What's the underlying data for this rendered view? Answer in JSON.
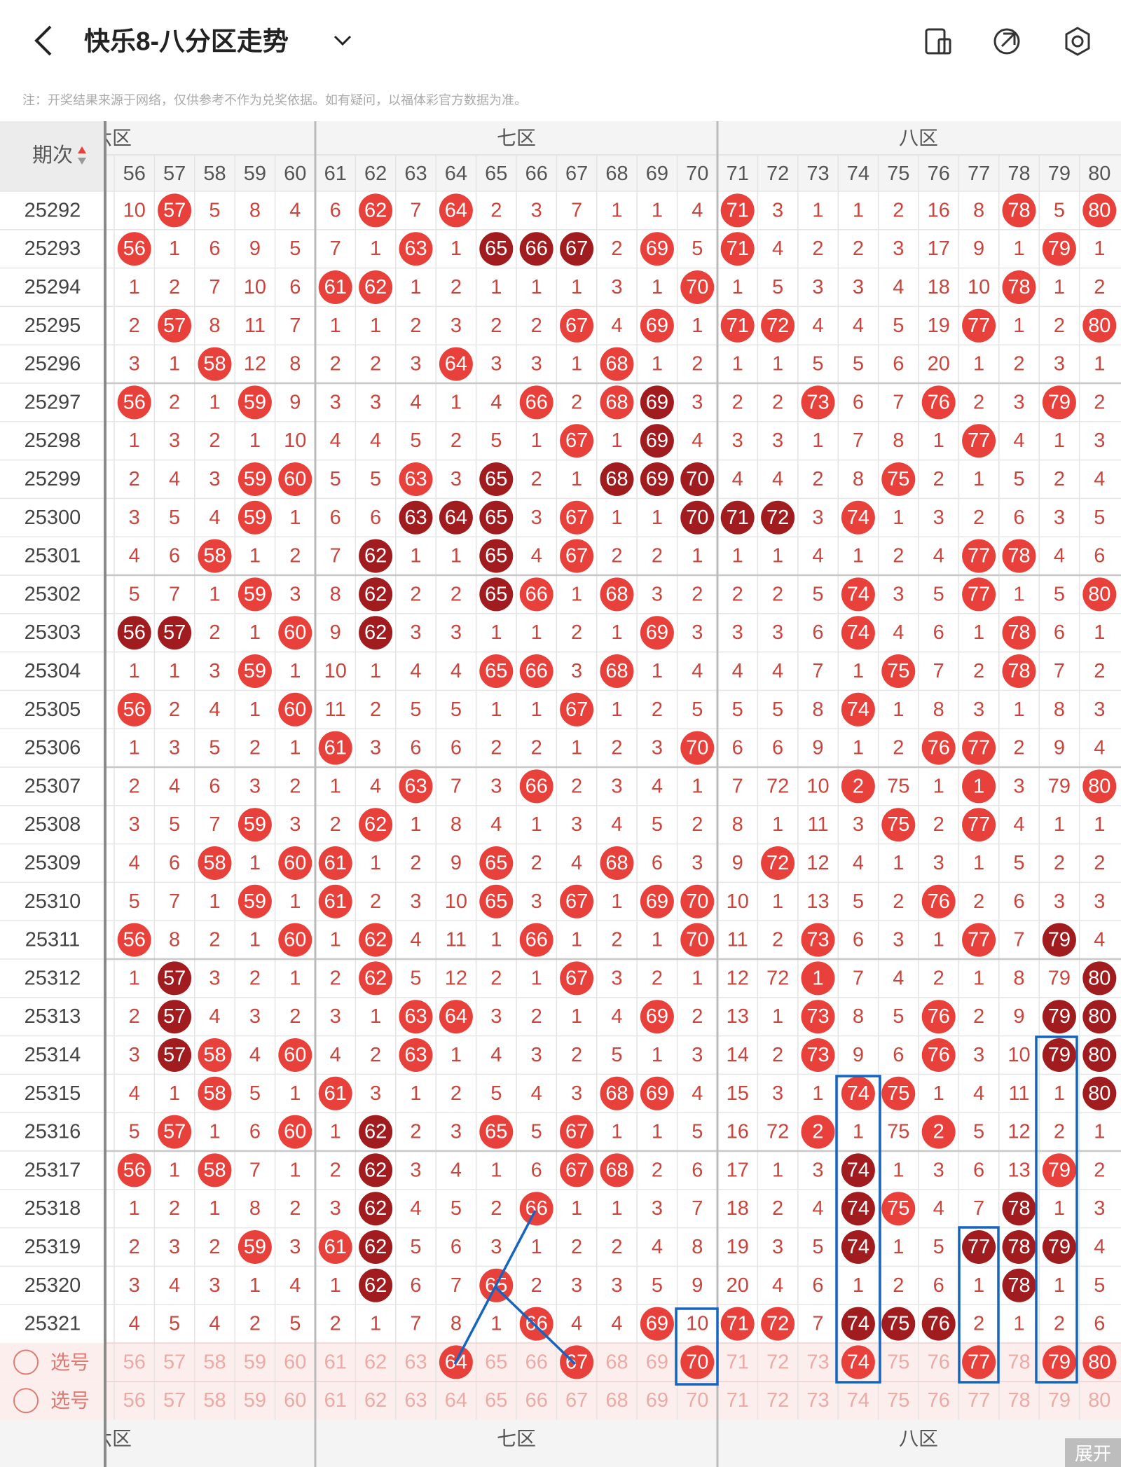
{
  "header": {
    "title": "快乐8-八分区走势",
    "note": "注：开奖结果来源于网络，仅供参考不作为兑奖依据。如有疑问，以福体彩官方数据为准。"
  },
  "table": {
    "issue_header": "期次",
    "zones": [
      {
        "label": "六区"
      },
      {
        "label": "七区"
      },
      {
        "label": "八区"
      }
    ],
    "columns": [
      56,
      57,
      58,
      59,
      60,
      61,
      62,
      63,
      64,
      65,
      66,
      67,
      68,
      69,
      70,
      71,
      72,
      73,
      74,
      75,
      76,
      77,
      78,
      79,
      80
    ],
    "ball_colors": {
      "r": "#e8403a",
      "d": "#a01c1e"
    },
    "rows": [
      {
        "issue": "25292",
        "cells": [
          10,
          57,
          5,
          8,
          4,
          6,
          62,
          7,
          64,
          2,
          3,
          7,
          1,
          1,
          4,
          71,
          3,
          1,
          1,
          2,
          16,
          8,
          78,
          5,
          80
        ],
        "balls": ".r....r.r......r......r.r"
      },
      {
        "issue": "25293",
        "cells": [
          56,
          1,
          6,
          9,
          5,
          7,
          1,
          63,
          1,
          65,
          66,
          67,
          2,
          69,
          5,
          71,
          4,
          2,
          2,
          3,
          17,
          9,
          1,
          79,
          1
        ],
        "balls": "r......r.ddd.r.r.......r."
      },
      {
        "issue": "25294",
        "cells": [
          1,
          2,
          7,
          10,
          6,
          61,
          62,
          1,
          2,
          1,
          1,
          1,
          3,
          1,
          70,
          1,
          5,
          3,
          3,
          4,
          18,
          10,
          78,
          1,
          2
        ],
        "balls": ".....rr.......r.......r.."
      },
      {
        "issue": "25295",
        "cells": [
          2,
          57,
          8,
          11,
          7,
          1,
          1,
          2,
          3,
          2,
          2,
          67,
          4,
          69,
          1,
          71,
          72,
          4,
          4,
          5,
          19,
          77,
          1,
          2,
          80
        ],
        "balls": ".r.........r.r.rr....r..r"
      },
      {
        "issue": "25296",
        "cells": [
          3,
          1,
          58,
          12,
          8,
          2,
          2,
          3,
          64,
          3,
          3,
          1,
          68,
          1,
          2,
          1,
          1,
          5,
          5,
          6,
          20,
          1,
          2,
          3,
          1
        ],
        "balls": "..r.....r...r............"
      },
      {
        "issue": "25297",
        "cells": [
          56,
          2,
          1,
          59,
          9,
          3,
          3,
          4,
          1,
          4,
          66,
          2,
          68,
          69,
          3,
          2,
          2,
          73,
          6,
          7,
          76,
          2,
          3,
          79,
          2
        ],
        "balls": "r..r......r.rd...r..r..r."
      },
      {
        "issue": "25298",
        "cells": [
          1,
          3,
          2,
          1,
          10,
          4,
          4,
          5,
          2,
          5,
          1,
          67,
          1,
          69,
          4,
          3,
          3,
          1,
          7,
          8,
          1,
          77,
          4,
          1,
          3
        ],
        "balls": "...........r.d.......r..."
      },
      {
        "issue": "25299",
        "cells": [
          2,
          4,
          3,
          59,
          60,
          5,
          5,
          63,
          3,
          65,
          2,
          1,
          68,
          69,
          70,
          4,
          4,
          2,
          8,
          75,
          2,
          1,
          5,
          2,
          4
        ],
        "balls": "...rr..r.d..ddd....r....."
      },
      {
        "issue": "25300",
        "cells": [
          3,
          5,
          4,
          59,
          1,
          6,
          6,
          63,
          64,
          65,
          3,
          67,
          1,
          1,
          70,
          71,
          72,
          3,
          74,
          1,
          3,
          2,
          6,
          3,
          5
        ],
        "balls": "...r...ddd.r..ddd.r......"
      },
      {
        "issue": "25301",
        "cells": [
          4,
          6,
          58,
          1,
          2,
          7,
          62,
          1,
          1,
          65,
          4,
          67,
          2,
          2,
          1,
          1,
          1,
          4,
          1,
          2,
          4,
          77,
          78,
          4,
          6
        ],
        "balls": "..r...d..d.r.........rr.."
      },
      {
        "issue": "25302",
        "cells": [
          5,
          7,
          1,
          59,
          3,
          8,
          62,
          2,
          2,
          65,
          66,
          1,
          68,
          3,
          2,
          2,
          2,
          5,
          74,
          3,
          5,
          77,
          1,
          5,
          80
        ],
        "balls": "...r..d..dr.r.....r..r..r"
      },
      {
        "issue": "25303",
        "cells": [
          56,
          57,
          2,
          1,
          60,
          9,
          62,
          3,
          3,
          1,
          1,
          2,
          1,
          69,
          3,
          3,
          3,
          6,
          74,
          4,
          6,
          1,
          78,
          6,
          1
        ],
        "balls": "dd..r.d......r....r...r.."
      },
      {
        "issue": "25304",
        "cells": [
          1,
          1,
          3,
          59,
          1,
          10,
          1,
          4,
          4,
          65,
          66,
          3,
          68,
          1,
          4,
          4,
          4,
          7,
          1,
          75,
          7,
          2,
          78,
          7,
          2
        ],
        "balls": "...r.....rr.r......r..r.."
      },
      {
        "issue": "25305",
        "cells": [
          56,
          2,
          4,
          1,
          60,
          11,
          2,
          5,
          5,
          1,
          1,
          67,
          1,
          2,
          5,
          5,
          5,
          8,
          74,
          1,
          8,
          3,
          1,
          8,
          3
        ],
        "balls": "r...r......r......r......"
      },
      {
        "issue": "25306",
        "cells": [
          1,
          3,
          5,
          2,
          1,
          61,
          3,
          6,
          6,
          2,
          2,
          1,
          2,
          3,
          70,
          6,
          6,
          9,
          1,
          2,
          76,
          77,
          2,
          9,
          4
        ],
        "balls": ".....r........r.....rr..."
      },
      {
        "issue": "25307",
        "cells": [
          2,
          4,
          6,
          3,
          2,
          1,
          4,
          63,
          7,
          3,
          66,
          2,
          3,
          4,
          1,
          7,
          72,
          10,
          2,
          75,
          1,
          1,
          3,
          79,
          80
        ],
        "balls": ".......r..r.......r..r..rr"
      },
      {
        "issue": "25308",
        "cells": [
          3,
          5,
          7,
          59,
          3,
          2,
          62,
          1,
          8,
          4,
          1,
          3,
          4,
          5,
          2,
          8,
          1,
          11,
          3,
          75,
          2,
          77,
          4,
          1,
          1
        ],
        "balls": "...r..r............r.r..."
      },
      {
        "issue": "25309",
        "cells": [
          4,
          6,
          58,
          1,
          60,
          61,
          1,
          2,
          9,
          65,
          2,
          4,
          68,
          6,
          3,
          9,
          72,
          12,
          4,
          1,
          3,
          1,
          5,
          2,
          2
        ],
        "balls": "..r.rr...r..r...r........"
      },
      {
        "issue": "25310",
        "cells": [
          5,
          7,
          1,
          59,
          1,
          61,
          2,
          3,
          10,
          65,
          3,
          67,
          1,
          69,
          70,
          10,
          1,
          13,
          5,
          2,
          76,
          2,
          6,
          3,
          3
        ],
        "balls": "...r.r...r.r.rr.....r...."
      },
      {
        "issue": "25311",
        "cells": [
          56,
          8,
          2,
          1,
          60,
          1,
          62,
          4,
          11,
          1,
          66,
          1,
          2,
          1,
          70,
          11,
          2,
          73,
          6,
          3,
          1,
          77,
          7,
          79,
          4
        ],
        "balls": "r...r.r...r...r..r...r.d."
      },
      {
        "issue": "25312",
        "cells": [
          1,
          57,
          3,
          2,
          1,
          2,
          62,
          5,
          12,
          2,
          1,
          67,
          3,
          2,
          1,
          12,
          72,
          1,
          7,
          4,
          2,
          1,
          8,
          79,
          80
        ],
        "balls": ".d....r....r.....r......dd"
      },
      {
        "issue": "25313",
        "cells": [
          2,
          57,
          4,
          3,
          2,
          3,
          1,
          63,
          64,
          3,
          2,
          1,
          4,
          69,
          2,
          13,
          1,
          73,
          8,
          5,
          76,
          2,
          9,
          79,
          80
        ],
        "balls": ".d.....rr....r...r..r..dd"
      },
      {
        "issue": "25314",
        "cells": [
          3,
          57,
          58,
          4,
          60,
          4,
          2,
          63,
          1,
          4,
          3,
          2,
          5,
          1,
          3,
          14,
          2,
          73,
          9,
          6,
          76,
          3,
          10,
          79,
          80
        ],
        "balls": ".dr.r..r.........r..r..dd"
      },
      {
        "issue": "25315",
        "cells": [
          4,
          1,
          58,
          5,
          1,
          61,
          3,
          1,
          2,
          5,
          4,
          3,
          68,
          69,
          4,
          15,
          3,
          1,
          74,
          75,
          1,
          4,
          11,
          1,
          80
        ],
        "balls": "..r..r......rr....rr....d"
      },
      {
        "issue": "25316",
        "cells": [
          5,
          57,
          1,
          6,
          60,
          1,
          62,
          2,
          3,
          65,
          5,
          67,
          1,
          1,
          5,
          16,
          72,
          2,
          1,
          75,
          2,
          5,
          12,
          2,
          1
        ],
        "balls": ".r..r.d..r.r.....r..r...."
      },
      {
        "issue": "25317",
        "cells": [
          56,
          1,
          58,
          7,
          1,
          2,
          62,
          3,
          4,
          1,
          6,
          67,
          68,
          2,
          6,
          17,
          1,
          3,
          74,
          1,
          3,
          6,
          13,
          79,
          2
        ],
        "balls": "r.r...d....rr.....d....r."
      },
      {
        "issue": "25318",
        "cells": [
          1,
          2,
          1,
          8,
          2,
          3,
          62,
          4,
          5,
          2,
          66,
          1,
          1,
          3,
          7,
          18,
          2,
          4,
          74,
          75,
          4,
          7,
          78,
          1,
          3
        ],
        "balls": "......d...r.......dr..d.."
      },
      {
        "issue": "25319",
        "cells": [
          2,
          3,
          2,
          59,
          3,
          61,
          62,
          5,
          6,
          3,
          1,
          2,
          2,
          4,
          8,
          19,
          3,
          5,
          74,
          1,
          5,
          77,
          78,
          79,
          4
        ],
        "balls": "...r.rd...........d..ddd."
      },
      {
        "issue": "25320",
        "cells": [
          3,
          4,
          3,
          1,
          4,
          1,
          62,
          6,
          7,
          65,
          2,
          3,
          3,
          5,
          9,
          20,
          4,
          6,
          1,
          2,
          6,
          1,
          78,
          1,
          5
        ],
        "balls": "......d..r............d.."
      },
      {
        "issue": "25321",
        "cells": [
          4,
          5,
          4,
          2,
          5,
          2,
          1,
          7,
          8,
          1,
          66,
          4,
          4,
          69,
          10,
          71,
          72,
          7,
          74,
          75,
          76,
          2,
          1,
          2,
          6
        ],
        "balls": "..........r..r.rr.ddd...."
      }
    ],
    "pick_rows": [
      {
        "label": "选号",
        "cells": [
          56,
          57,
          58,
          59,
          60,
          61,
          62,
          63,
          64,
          65,
          66,
          67,
          68,
          69,
          70,
          71,
          72,
          73,
          74,
          75,
          76,
          77,
          78,
          79,
          80
        ],
        "balls": "........r..r..r...r..r.rr"
      },
      {
        "label": "选号",
        "cells": [
          56,
          57,
          58,
          59,
          60,
          61,
          62,
          63,
          64,
          65,
          66,
          67,
          68,
          69,
          70,
          71,
          72,
          73,
          74,
          75,
          76,
          77,
          78,
          79,
          80
        ],
        "balls": "........................."
      }
    ],
    "expand": "展开"
  }
}
